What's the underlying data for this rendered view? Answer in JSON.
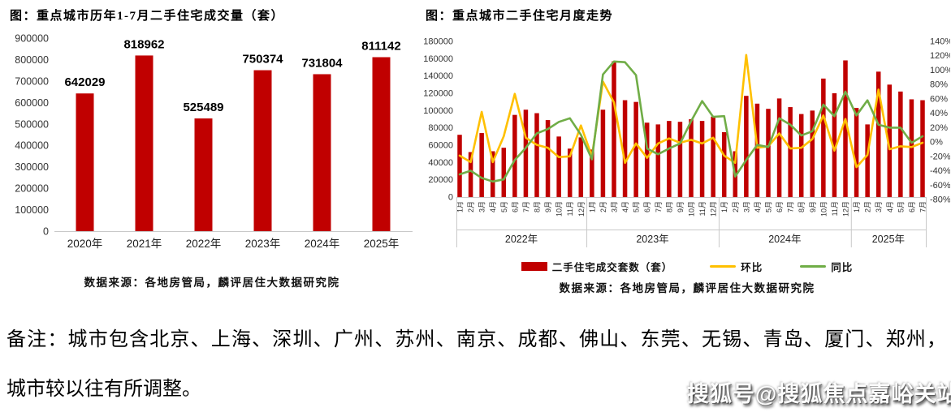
{
  "colors": {
    "bar_red": "#C00000",
    "mom_yellow": "#FFC000",
    "yoy_green": "#70AD47",
    "axis_text": "#333333",
    "axis_line": "#C9C9C9"
  },
  "chart_data": [
    {
      "type": "bar",
      "title": "图：重点城市历年1-7月二手住宅成交量（套）",
      "categories": [
        "2020年",
        "2021年",
        "2022年",
        "2023年",
        "2024年",
        "2025年"
      ],
      "values": [
        642029,
        818962,
        525489,
        750374,
        731804,
        811142
      ],
      "ylabel": "",
      "xlabel": "",
      "ylim": [
        0,
        900000
      ],
      "ytick_step": 100000,
      "grid": false,
      "data_labels": true,
      "bar_color": "#C00000",
      "source": "数据来源：各地房管局，麟评居住大数据研究院"
    },
    {
      "type": "bar+line",
      "title": "图：重点城市二手住宅月度走势",
      "x_labels": [
        "1月",
        "2月",
        "3月",
        "4月",
        "5月",
        "6月",
        "7月",
        "8月",
        "9月",
        "10月",
        "11月",
        "12月",
        "1月",
        "2月",
        "3月",
        "4月",
        "5月",
        "6月",
        "7月",
        "8月",
        "9月",
        "10月",
        "11月",
        "12月",
        "1月",
        "2月",
        "3月",
        "4月",
        "5月",
        "6月",
        "7月",
        "8月",
        "9月",
        "10月",
        "11月",
        "12月",
        "1月",
        "2月",
        "3月",
        "4月",
        "5月",
        "6月",
        "7月"
      ],
      "year_groups": [
        {
          "label": "2022年",
          "count": 12
        },
        {
          "label": "2023年",
          "count": 12
        },
        {
          "label": "2024年",
          "count": 12
        },
        {
          "label": "2025年",
          "count": 7
        }
      ],
      "left_axis": {
        "min": 0,
        "max": 180000,
        "step": 20000
      },
      "right_axis": {
        "min": -80,
        "max": 140,
        "step": 20,
        "suffix": "%"
      },
      "legend_position": "bottom",
      "grid": false,
      "series": [
        {
          "name": "二手住宅成交套数（套）",
          "type": "bar",
          "axis": "left",
          "color": "#C00000",
          "values": [
            72000,
            52000,
            74000,
            53000,
            57000,
            95000,
            101000,
            97000,
            89000,
            70000,
            56000,
            69000,
            55000,
            101000,
            157000,
            112000,
            110000,
            86000,
            84000,
            88000,
            87000,
            90000,
            88000,
            93000,
            75000,
            53000,
            117000,
            108000,
            102000,
            114000,
            104000,
            96000,
            100000,
            137000,
            120000,
            158000,
            103000,
            84000,
            145000,
            130000,
            122000,
            113000,
            112000
          ]
        },
        {
          "name": "环比",
          "type": "line",
          "axis": "right",
          "color": "#FFC000",
          "values": [
            -19,
            -28,
            42,
            -28,
            8,
            67,
            6,
            -4,
            -8,
            -21,
            -20,
            23,
            -20,
            84,
            55,
            -29,
            -2,
            -22,
            -2,
            5,
            -1,
            3,
            -2,
            6,
            -19,
            -29,
            121,
            -8,
            -6,
            12,
            -9,
            -8,
            4,
            37,
            -12,
            32,
            -35,
            -18,
            73,
            -10,
            -6,
            -7,
            -1
          ]
        },
        {
          "name": "同比",
          "type": "line",
          "axis": "right",
          "color": "#70AD47",
          "values": [
            -45,
            -40,
            -50,
            -55,
            -52,
            -25,
            -8,
            12,
            18,
            28,
            33,
            10,
            -24,
            94,
            112,
            111,
            93,
            -9,
            -17,
            -9,
            -2,
            29,
            57,
            35,
            36,
            -48,
            -25,
            -4,
            -7,
            33,
            24,
            9,
            15,
            52,
            36,
            70,
            37,
            58,
            24,
            20,
            20,
            -1,
            8
          ]
        }
      ],
      "source": "数据来源：各地房管局，麟评居住大数据研究院"
    }
  ],
  "note": {
    "line1": "备注：城市包含北京、上海、深圳、广州、苏州、南京、成都、佛山、东莞、无锡、青岛、厦门、郑州，",
    "line2": "城市较以往有所调整。"
  },
  "watermark": "搜狐号@搜狐焦点嘉峪关站"
}
